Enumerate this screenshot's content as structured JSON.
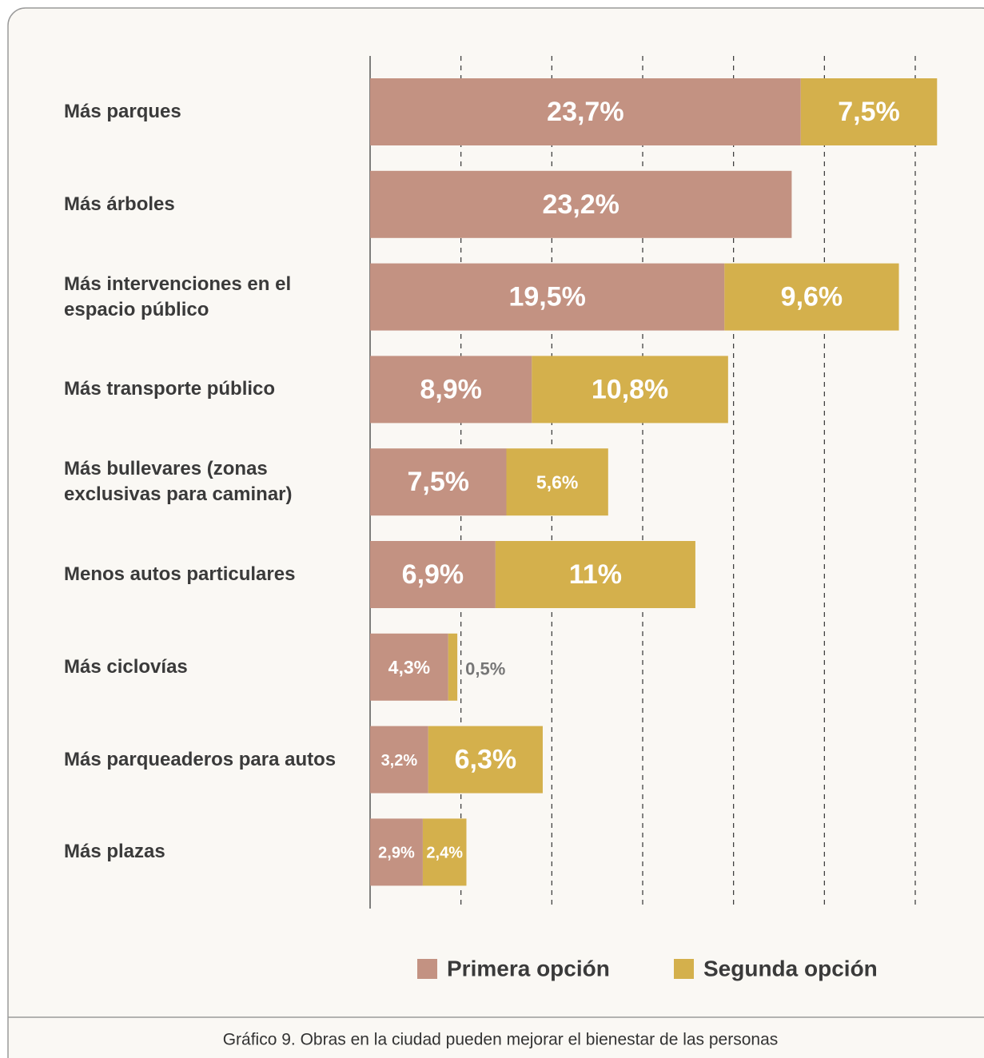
{
  "chart_data": {
    "type": "stacked_bar_horizontal",
    "caption": "Gráfico 9. Obras en la ciudad pueden mejorar el bienestar de las personas",
    "categories": [
      "Más parques",
      "Más árboles",
      "Más intervenciones en el espacio público",
      "Más transporte público",
      "Más bullevares (zonas exclusivas para caminar)",
      "Menos autos particulares",
      "Más ciclovías",
      "Más parqueaderos para autos",
      "Más plazas"
    ],
    "series": [
      {
        "name": "Primera opción",
        "color": "#c39282",
        "values": [
          23.7,
          23.2,
          19.5,
          8.9,
          7.5,
          6.9,
          4.3,
          3.2,
          2.9
        ],
        "value_labels": [
          "23,7%",
          "23,2%",
          "19,5%",
          "8,9%",
          "7,5%",
          "6,9%",
          "4,3%",
          "3,2%",
          "2,9%"
        ]
      },
      {
        "name": "Segunda opción",
        "color": "#d4b04c",
        "values": [
          7.5,
          null,
          9.6,
          10.8,
          5.6,
          11,
          0.5,
          6.3,
          2.4
        ],
        "value_labels": [
          "7,5%",
          null,
          "9,6%",
          "10,8%",
          "5,6%",
          "11%",
          "0,5%",
          "6,3%",
          "2,4%"
        ]
      }
    ],
    "xlim": [
      0,
      30
    ],
    "xticks": [
      0,
      5,
      10,
      15,
      20,
      25,
      30
    ],
    "grid": true,
    "legend": "bottom"
  }
}
